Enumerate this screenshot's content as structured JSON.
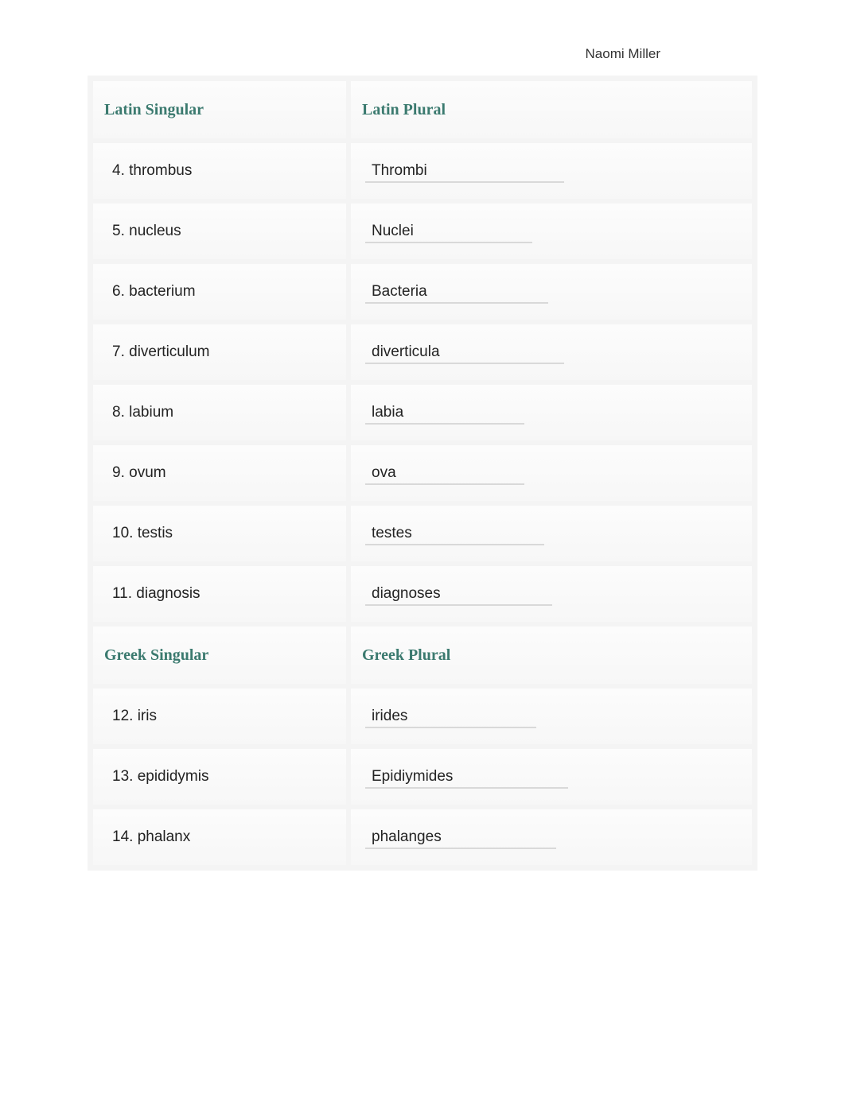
{
  "author": "Naomi Miller",
  "header_color": "#3b7a6f",
  "text_color": "#232323",
  "border_color": "#f4f4f4",
  "underline_color": "#d9d9d9",
  "bg_color": "#ffffff",
  "sections": [
    {
      "left_header": "Latin Singular",
      "right_header": "Latin Plural",
      "rows": [
        {
          "num": "4.",
          "singular": "thrombus",
          "plural": "Thrombi",
          "underline_width": 250
        },
        {
          "num": "5.",
          "singular": "nucleus",
          "plural": "Nuclei",
          "underline_width": 210
        },
        {
          "num": "6.",
          "singular": "bacterium",
          "plural": "Bacteria",
          "underline_width": 230
        },
        {
          "num": "7.",
          "singular": "diverticulum",
          "plural": "diverticula",
          "underline_width": 250
        },
        {
          "num": "8.",
          "singular": "labium",
          "plural": "labia",
          "underline_width": 200
        },
        {
          "num": "9.",
          "singular": "ovum",
          "plural": "ova",
          "underline_width": 200
        },
        {
          "num": "10.",
          "singular": "testis",
          "plural": "testes",
          "underline_width": 225
        },
        {
          "num": "11.",
          "singular": "diagnosis",
          "plural": "diagnoses",
          "underline_width": 235
        }
      ]
    },
    {
      "left_header": "Greek Singular",
      "right_header": "Greek Plural",
      "rows": [
        {
          "num": "12.",
          "singular": "iris",
          "plural": "irides",
          "underline_width": 215
        },
        {
          "num": "13.",
          "singular": "epididymis",
          "plural": "Epidiymides",
          "underline_width": 255
        },
        {
          "num": "14.",
          "singular": "phalanx",
          "plural": "phalanges",
          "underline_width": 240
        }
      ]
    }
  ]
}
